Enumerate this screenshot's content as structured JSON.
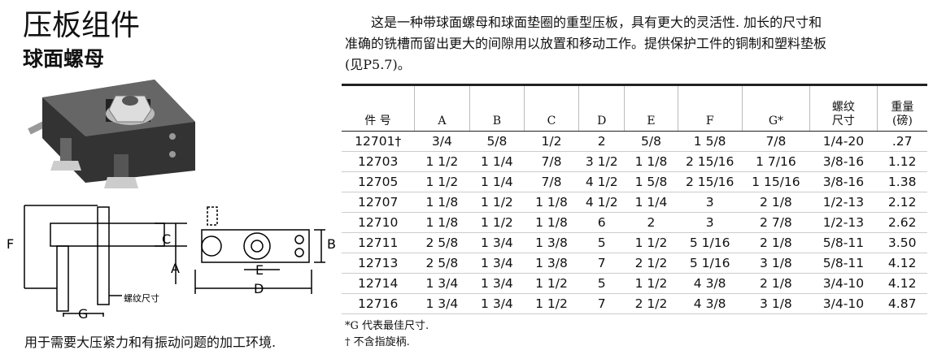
{
  "header": {
    "title": "压板组件",
    "subtitle": "球面螺母"
  },
  "description": [
    "这是一种带球面螺母和球面垫圈的重型压板，具有更大的灵活性. 加长的尺寸和",
    "准确的铣槽而留出更大的间隙用以放置和移动工作。提供保护工件的铜制和塑料垫板",
    "(见P5.7)。"
  ],
  "diagram": {
    "labels": {
      "f": "F",
      "c": "C",
      "a": "A",
      "g": "G",
      "b": "B",
      "e": "E",
      "d": "D",
      "thread": "螺纹尺寸"
    }
  },
  "caption": "用于需要大压紧力和有振动问题的加工环境.",
  "table": {
    "headers": [
      [
        "件 号"
      ],
      [
        "A"
      ],
      [
        "B"
      ],
      [
        "C"
      ],
      [
        "D"
      ],
      [
        "E"
      ],
      [
        "F"
      ],
      [
        "G*"
      ],
      [
        "螺纹",
        "尺寸"
      ],
      [
        "重量",
        "(磅)"
      ]
    ],
    "rows": [
      [
        "12701†",
        "3/4",
        "5/8",
        "1/2",
        "2",
        "5/8",
        "1 5/8",
        "7/8",
        "1/4-20",
        ".27"
      ],
      [
        "12703",
        "1 1/2",
        "1 1/4",
        "7/8",
        "3 1/2",
        "1 1/8",
        "2 15/16",
        "1 7/16",
        "3/8-16",
        "1.12"
      ],
      [
        "12705",
        "1 1/2",
        "1 1/4",
        "7/8",
        "4 1/2",
        "1 5/8",
        "2 15/16",
        "1 15/16",
        "3/8-16",
        "1.38"
      ],
      [
        "12707",
        "1 1/8",
        "1 1/2",
        "1 1/8",
        "4 1/2",
        "1 1/4",
        "3",
        "2 1/8",
        "1/2-13",
        "2.12"
      ],
      [
        "12710",
        "1 1/8",
        "1 1/2",
        "1 1/8",
        "6",
        "2",
        "3",
        "2 7/8",
        "1/2-13",
        "2.62"
      ],
      [
        "12711",
        "2 5/8",
        "1 3/4",
        "1 3/8",
        "5",
        "1 1/2",
        "5 1/16",
        "2 1/8",
        "5/8-11",
        "3.50"
      ],
      [
        "12713",
        "2 5/8",
        "1 3/4",
        "1 3/8",
        "7",
        "2 1/2",
        "5 1/16",
        "3 1/8",
        "5/8-11",
        "4.12"
      ],
      [
        "12714",
        "1 3/4",
        "1 3/4",
        "1 1/2",
        "5",
        "1 1/2",
        "4 3/8",
        "2 1/8",
        "3/4-10",
        "4.12"
      ],
      [
        "12716",
        "1 3/4",
        "1 3/4",
        "1 1/2",
        "7",
        "2 1/2",
        "4 3/8",
        "3 1/8",
        "3/4-10",
        "4.87"
      ]
    ]
  },
  "footnotes": [
    "*G 代表最佳尺寸.",
    "† 不含指旋柄."
  ]
}
